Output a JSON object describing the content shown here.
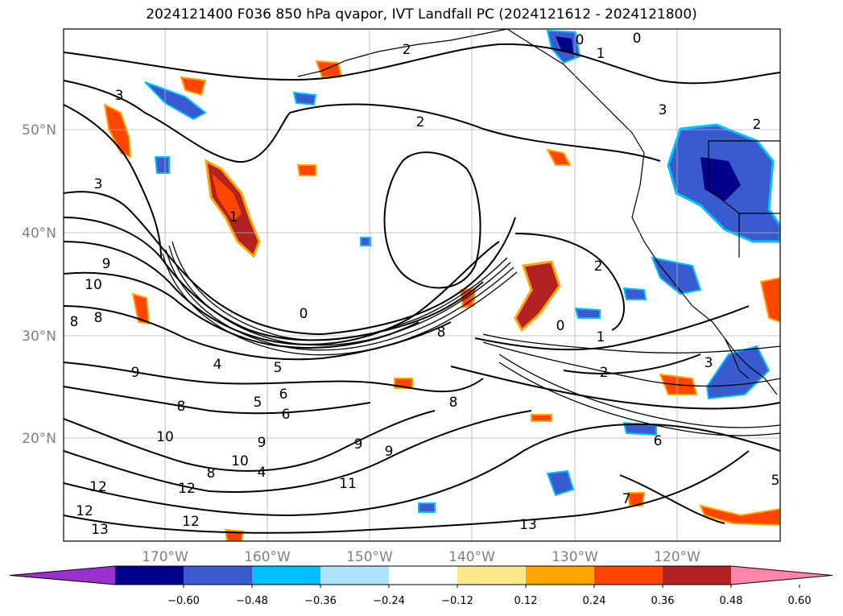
{
  "title": "2024121400 F036 850 hPa qvapor, IVT Landfall PC (2024121612 - 2024121800)",
  "map": {
    "lon_labels": [
      "170°W",
      "160°W",
      "150°W",
      "140°W",
      "130°W",
      "120°W"
    ],
    "lat_labels": [
      "50°N",
      "40°N",
      "30°N",
      "20°N"
    ],
    "tick_color": "#808080"
  },
  "contour_labels": [
    {
      "text": "3"
    },
    {
      "text": "2"
    },
    {
      "text": "0"
    },
    {
      "text": "1"
    },
    {
      "text": "0"
    },
    {
      "text": "2"
    },
    {
      "text": "3"
    },
    {
      "text": "1"
    },
    {
      "text": "9"
    },
    {
      "text": "10"
    },
    {
      "text": "8"
    },
    {
      "text": "8"
    },
    {
      "text": "0"
    },
    {
      "text": "8"
    },
    {
      "text": "4"
    },
    {
      "text": "5"
    },
    {
      "text": "5"
    },
    {
      "text": "6"
    },
    {
      "text": "9"
    },
    {
      "text": "8"
    },
    {
      "text": "8"
    },
    {
      "text": "10"
    },
    {
      "text": "9"
    },
    {
      "text": "9"
    },
    {
      "text": "10"
    },
    {
      "text": "8"
    },
    {
      "text": "4"
    },
    {
      "text": "11"
    },
    {
      "text": "12"
    },
    {
      "text": "12"
    },
    {
      "text": "12"
    },
    {
      "text": "13"
    },
    {
      "text": "12"
    },
    {
      "text": "13"
    },
    {
      "text": "0"
    },
    {
      "text": "1"
    },
    {
      "text": "2"
    },
    {
      "text": "3"
    },
    {
      "text": "3"
    },
    {
      "text": "2"
    },
    {
      "text": "6"
    },
    {
      "text": "7"
    },
    {
      "text": "5"
    },
    {
      "text": "2"
    },
    {
      "text": "6"
    },
    {
      "text": "10"
    },
    {
      "text": "9"
    }
  ],
  "colorbar": {
    "colors": [
      "#9932cc",
      "#00008b",
      "#3a5bd0",
      "#00bfff",
      "#aee3fb",
      "#ffffff",
      "#fce98c",
      "#ffa500",
      "#ff4500",
      "#b22222",
      "#ff85a9"
    ],
    "tick_labels": [
      "−0.60",
      "−0.48",
      "−0.36",
      "−0.24",
      "−0.12",
      "0.12",
      "0.24",
      "0.36",
      "0.48",
      "0.60"
    ]
  }
}
